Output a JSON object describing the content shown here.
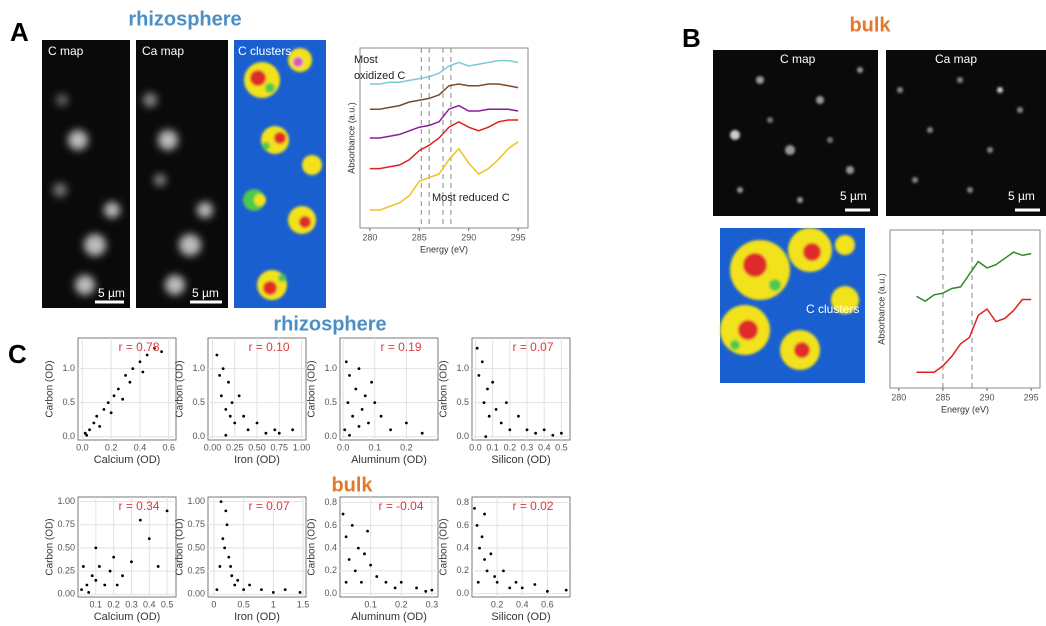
{
  "figure": {
    "panel_a": {
      "label": "A",
      "title": "rhizosphere",
      "maps": [
        {
          "label": "C map",
          "scale_bar": "5 µm"
        },
        {
          "label": "Ca map",
          "scale_bar": "5 µm"
        },
        {
          "label": "C clusters"
        }
      ]
    },
    "panel_b": {
      "label": "B",
      "title": "bulk",
      "maps": [
        {
          "label": "C map",
          "scale_bar": "5 µm"
        },
        {
          "label": "Ca map",
          "scale_bar": "5 µm"
        },
        {
          "label": "C clusters"
        }
      ]
    },
    "panel_c": {
      "label": "C",
      "titles": [
        "rhizosphere",
        "bulk"
      ]
    }
  },
  "chart_data": [
    {
      "type": "line",
      "xlabel": "Energy (eV)",
      "ylabel": "Absorbance (a.u.)",
      "annotations": [
        "Most",
        "oxidized  C",
        "Most reduced C"
      ],
      "x": [
        280,
        281,
        282,
        283,
        284,
        285,
        286,
        287,
        288,
        289,
        290,
        291,
        292,
        293,
        294,
        295
      ],
      "series": [
        {
          "color": "#7ec8dc",
          "values": [
            8.0,
            8.0,
            8.1,
            8.1,
            8.2,
            8.3,
            8.4,
            8.6,
            9.0,
            9.2,
            9.0,
            9.1,
            9.2,
            9.3,
            9.3,
            9.2
          ]
        },
        {
          "color": "#7a4a2a",
          "values": [
            6.6,
            6.6,
            6.7,
            6.8,
            7.0,
            7.1,
            7.2,
            7.4,
            7.9,
            8.0,
            7.9,
            7.9,
            8.0,
            8.0,
            7.9,
            7.8
          ]
        },
        {
          "color": "#8a1a9a",
          "values": [
            5.0,
            5.0,
            5.1,
            5.2,
            5.4,
            5.6,
            5.7,
            5.9,
            6.6,
            6.8,
            6.5,
            6.5,
            6.6,
            6.6,
            6.6,
            6.5
          ]
        },
        {
          "color": "#e02020",
          "values": [
            3.3,
            3.3,
            3.4,
            3.5,
            3.8,
            4.3,
            4.6,
            5.0,
            5.6,
            5.9,
            5.6,
            5.4,
            5.6,
            5.9,
            6.0,
            6.0
          ]
        },
        {
          "color": "#f0c020",
          "values": [
            1.0,
            1.0,
            1.2,
            1.4,
            1.8,
            2.6,
            2.8,
            3.0,
            3.8,
            4.4,
            3.6,
            3.0,
            3.3,
            3.8,
            4.4,
            4.8
          ]
        }
      ],
      "reference_lines": [
        285.2,
        286,
        287.4,
        288.2
      ],
      "xlim": [
        279,
        296
      ],
      "xticks": [
        280,
        285,
        290,
        295
      ],
      "ylim": [
        0,
        10
      ]
    },
    {
      "type": "line",
      "xlabel": "Energy (eV)",
      "ylabel": "Absorbance (a.u.)",
      "x": [
        282,
        283,
        284,
        285,
        286,
        287,
        288,
        289,
        290,
        291,
        292,
        293,
        294,
        295
      ],
      "series": [
        {
          "color": "#2a8a2a",
          "values": [
            5.8,
            5.5,
            5.9,
            6.0,
            6.3,
            6.4,
            7.2,
            8.0,
            7.6,
            7.8,
            8.2,
            8.6,
            8.4,
            8.5
          ]
        },
        {
          "color": "#e02020",
          "values": [
            1.0,
            1.0,
            1.0,
            1.4,
            2.0,
            2.8,
            3.2,
            4.6,
            5.0,
            4.2,
            4.4,
            4.9,
            5.6,
            5.6
          ]
        }
      ],
      "reference_lines": [
        285,
        288.3
      ],
      "xlim": [
        279,
        296
      ],
      "xticks": [
        280,
        285,
        290,
        295
      ],
      "ylim": [
        0,
        10
      ]
    },
    {
      "type": "scatter",
      "annotation": "r = 0.78",
      "xlabel": "Calcium (OD)",
      "ylabel": "Carbon (OD)",
      "x": [
        0.02,
        0.05,
        0.08,
        0.1,
        0.12,
        0.15,
        0.18,
        0.2,
        0.22,
        0.25,
        0.28,
        0.3,
        0.33,
        0.35,
        0.4,
        0.42,
        0.45,
        0.5,
        0.55,
        0.03
      ],
      "y": [
        0.05,
        0.1,
        0.2,
        0.3,
        0.15,
        0.4,
        0.5,
        0.35,
        0.6,
        0.7,
        0.55,
        0.9,
        0.8,
        1.0,
        1.1,
        0.95,
        1.2,
        1.3,
        1.25,
        0.02
      ],
      "xlim": [
        -0.03,
        0.65
      ],
      "xticks": [
        {
          "value": 0,
          "label": "0.0"
        },
        0.2,
        0.4,
        0.6
      ],
      "ylim": [
        -0.05,
        1.45
      ],
      "yticks": [
        {
          "value": 0,
          "label": "0.0"
        },
        0.5,
        {
          "value": 1,
          "label": "1.0"
        }
      ]
    },
    {
      "type": "scatter",
      "annotation": "r = 0.10",
      "xlabel": "Iron (OD)",
      "ylabel": "Carbon (OD)",
      "x": [
        0.05,
        0.08,
        0.1,
        0.12,
        0.15,
        0.18,
        0.2,
        0.22,
        0.25,
        0.3,
        0.35,
        0.4,
        0.5,
        0.6,
        0.7,
        0.75,
        0.9,
        0.15
      ],
      "y": [
        1.2,
        0.9,
        0.6,
        1.0,
        0.4,
        0.8,
        0.3,
        0.5,
        0.2,
        0.6,
        0.3,
        0.1,
        0.2,
        0.05,
        0.1,
        0.05,
        0.1,
        0.02
      ],
      "xlim": [
        -0.05,
        1.05
      ],
      "xticks": [
        {
          "value": 0,
          "label": "0.00"
        },
        0.25,
        {
          "value": 0.5,
          "label": "0.50"
        },
        0.75,
        {
          "value": 1,
          "label": "1.00"
        }
      ],
      "ylim": [
        -0.05,
        1.45
      ],
      "yticks": [
        {
          "value": 0,
          "label": "0.0"
        },
        0.5,
        {
          "value": 1,
          "label": "1.0"
        }
      ]
    },
    {
      "type": "scatter",
      "annotation": "r = 0.19",
      "xlabel": "Aluminum (OD)",
      "ylabel": "Carbon (OD)",
      "x": [
        0.005,
        0.01,
        0.015,
        0.02,
        0.03,
        0.04,
        0.05,
        0.06,
        0.07,
        0.08,
        0.1,
        0.12,
        0.15,
        0.2,
        0.25,
        0.02,
        0.05,
        0.09
      ],
      "y": [
        0.1,
        1.1,
        0.5,
        0.9,
        0.3,
        0.7,
        1.0,
        0.4,
        0.6,
        0.2,
        0.5,
        0.3,
        0.1,
        0.2,
        0.05,
        0.02,
        0.15,
        0.8
      ],
      "xlim": [
        -0.01,
        0.3
      ],
      "xticks": [
        {
          "value": 0,
          "label": "0.0"
        },
        0.1,
        0.2
      ],
      "ylim": [
        -0.05,
        1.45
      ],
      "yticks": [
        {
          "value": 0,
          "label": "0.0"
        },
        0.5,
        {
          "value": 1,
          "label": "1.0"
        }
      ]
    },
    {
      "type": "scatter",
      "annotation": "r = 0.07",
      "xlabel": "Silicon (OD)",
      "ylabel": "Carbon (OD)",
      "x": [
        0.01,
        0.02,
        0.04,
        0.05,
        0.07,
        0.08,
        0.1,
        0.12,
        0.15,
        0.18,
        0.2,
        0.25,
        0.3,
        0.35,
        0.4,
        0.45,
        0.5,
        0.06
      ],
      "y": [
        1.3,
        0.9,
        1.1,
        0.5,
        0.7,
        0.3,
        0.8,
        0.4,
        0.2,
        0.5,
        0.1,
        0.3,
        0.1,
        0.05,
        0.1,
        0.02,
        0.05,
        0
      ],
      "xlim": [
        -0.02,
        0.55
      ],
      "xticks": [
        {
          "value": 0,
          "label": "0.0"
        },
        0.1,
        0.2,
        0.3,
        0.4,
        0.5
      ],
      "ylim": [
        -0.05,
        1.45
      ],
      "yticks": [
        {
          "value": 0,
          "label": "0.0"
        },
        0.5,
        {
          "value": 1,
          "label": "1.0"
        }
      ]
    },
    {
      "type": "scatter",
      "annotation": "r = 0.34",
      "xlabel": "Calcium (OD)",
      "ylabel": "Carbon (OD)",
      "x": [
        0.02,
        0.05,
        0.08,
        0.1,
        0.12,
        0.15,
        0.18,
        0.2,
        0.25,
        0.3,
        0.35,
        0.4,
        0.45,
        0.5,
        0.06,
        0.1,
        0.22,
        0.03
      ],
      "y": [
        0.05,
        0.1,
        0.2,
        0.15,
        0.3,
        0.1,
        0.25,
        0.4,
        0.2,
        0.35,
        0.8,
        0.6,
        0.3,
        0.9,
        0.02,
        0.5,
        0.1,
        0.3
      ],
      "xlim": [
        0,
        0.55
      ],
      "xticks": [
        0.1,
        0.2,
        0.3,
        0.4,
        0.5
      ],
      "ylim": [
        -0.03,
        1.05
      ],
      "yticks": [
        {
          "value": 0,
          "label": "0.00"
        },
        0.25,
        {
          "value": 0.5,
          "label": "0.50"
        },
        0.75,
        {
          "value": 1,
          "label": "1.00"
        }
      ]
    },
    {
      "type": "scatter",
      "annotation": "r = 0.07",
      "xlabel": "Iron (OD)",
      "ylabel": "Carbon (OD)",
      "x": [
        0.05,
        0.1,
        0.15,
        0.2,
        0.25,
        0.3,
        0.35,
        0.4,
        0.5,
        0.6,
        0.8,
        1.0,
        1.2,
        1.45,
        0.12,
        0.18,
        0.22,
        0.28
      ],
      "y": [
        0.05,
        0.3,
        0.6,
        0.9,
        0.4,
        0.2,
        0.1,
        0.15,
        0.05,
        0.1,
        0.05,
        0.02,
        0.05,
        0.02,
        1.0,
        0.5,
        0.75,
        0.3
      ],
      "xlim": [
        -0.1,
        1.55
      ],
      "xticks": [
        0,
        0.5,
        1,
        1.5
      ],
      "ylim": [
        -0.03,
        1.05
      ],
      "yticks": [
        {
          "value": 0,
          "label": "0.00"
        },
        0.25,
        {
          "value": 0.5,
          "label": "0.50"
        },
        0.75,
        {
          "value": 1,
          "label": "1.00"
        }
      ]
    },
    {
      "type": "scatter",
      "annotation": "r = -0.04",
      "xlabel": "Aluminum (OD)",
      "ylabel": "Carbon (OD)",
      "x": [
        0.01,
        0.02,
        0.03,
        0.04,
        0.05,
        0.06,
        0.07,
        0.08,
        0.1,
        0.12,
        0.15,
        0.18,
        0.2,
        0.25,
        0.28,
        0.3,
        0.02,
        0.09
      ],
      "y": [
        0.7,
        0.5,
        0.3,
        0.6,
        0.2,
        0.4,
        0.1,
        0.35,
        0.25,
        0.15,
        0.1,
        0.05,
        0.1,
        0.05,
        0.02,
        0.03,
        0.1,
        0.55
      ],
      "xlim": [
        0,
        0.32
      ],
      "xticks": [
        0.1,
        0.2,
        0.3
      ],
      "ylim": [
        -0.03,
        0.85
      ],
      "yticks": [
        {
          "value": 0,
          "label": "0.0"
        },
        0.2,
        0.4,
        0.6,
        0.8
      ]
    },
    {
      "type": "scatter",
      "annotation": "r = 0.02",
      "xlabel": "Silicon (OD)",
      "ylabel": "Carbon (OD)",
      "x": [
        0.02,
        0.04,
        0.06,
        0.08,
        0.1,
        0.12,
        0.15,
        0.18,
        0.2,
        0.25,
        0.3,
        0.35,
        0.4,
        0.5,
        0.6,
        0.75,
        0.05,
        0.1
      ],
      "y": [
        0.75,
        0.6,
        0.4,
        0.5,
        0.3,
        0.2,
        0.35,
        0.15,
        0.1,
        0.2,
        0.05,
        0.1,
        0.05,
        0.08,
        0.02,
        0.03,
        0.1,
        0.7
      ],
      "xlim": [
        0,
        0.78
      ],
      "xticks": [
        0.2,
        0.4,
        0.6
      ],
      "ylim": [
        -0.03,
        0.85
      ],
      "yticks": [
        {
          "value": 0,
          "label": "0.0"
        },
        0.2,
        0.4,
        0.6,
        0.8
      ]
    }
  ]
}
